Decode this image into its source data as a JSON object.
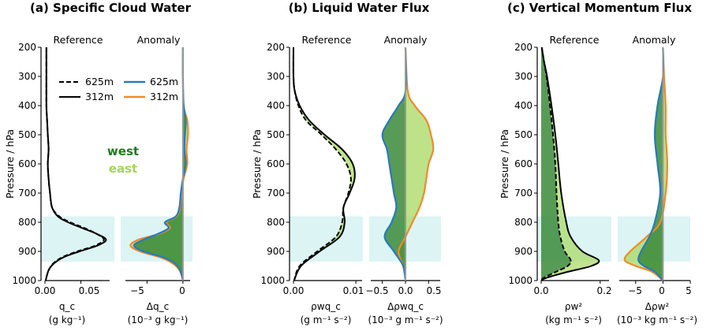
{
  "panels": [
    {
      "title": "(a) Specific Cloud Water",
      "ylabel": "Pressure / hPa",
      "sub_left": "Reference",
      "sub_right": "Anomaly",
      "xticks_left": [
        "0.00",
        "0.05"
      ],
      "xticks_right": [
        "−5",
        "0"
      ],
      "xlabel_left": [
        "q_c",
        "(g kg⁻¹)"
      ],
      "xlabel_right": [
        "Δq_c",
        "(10⁻³ g kg⁻¹)"
      ]
    },
    {
      "title": "(b) Liquid Water Flux",
      "ylabel": "Pressure / hPa",
      "sub_left": "Reference",
      "sub_right": "Anomaly",
      "xticks_left": [
        "0.00",
        "0.01"
      ],
      "xticks_right": [
        "−0.5",
        "0.0",
        "0.5"
      ],
      "xlabel_left": [
        "ρwq_c",
        "(g m⁻¹ s⁻²)"
      ],
      "xlabel_right": [
        "Δρwq_c",
        "(10⁻³ g m⁻¹ s⁻²)"
      ]
    },
    {
      "title": "(c) Vertical Momentum Flux",
      "ylabel": "Pressure / hPa",
      "sub_left": "Reference",
      "sub_right": "Anomaly",
      "xticks_left": [
        "0.0",
        "0.2"
      ],
      "xticks_right": [
        "−5",
        "0",
        "5"
      ],
      "xlabel_left": [
        "ρw²",
        "(kg m⁻¹ s⁻²)"
      ],
      "xlabel_right": [
        "Δρw²",
        "(10⁻³ kg m⁻¹ s⁻²)"
      ]
    }
  ],
  "yticks": [
    "200",
    "300",
    "400",
    "500",
    "600",
    "700",
    "800",
    "900",
    "1000"
  ],
  "legend_black": [
    "625m",
    "312m"
  ],
  "legend_color": [
    "625m",
    "312m"
  ],
  "region_labels": {
    "west": "west",
    "east": "east"
  },
  "colors": {
    "west": "#3a8a3a",
    "east": "#a8d860",
    "blue": "#2a7ab8",
    "orange": "#f08a2a",
    "shade": "#dcf4f4",
    "zero_line": "#999999",
    "west_text": "#1e7a1e",
    "east_text": "#a4d45a"
  },
  "chart_data": [
    {
      "type": "line",
      "title": "(a) Specific Cloud Water",
      "part": "Reference",
      "xlim": [
        0.0,
        0.09
      ],
      "ylim": [
        1000,
        200
      ],
      "y_scale": "linear",
      "shaded_band_hPa": [
        780,
        935
      ],
      "pressure_hPa": [
        200,
        300,
        400,
        450,
        500,
        550,
        600,
        650,
        700,
        750,
        780,
        800,
        820,
        840,
        860,
        880,
        900,
        920,
        940,
        960,
        980,
        1000
      ],
      "series": [
        {
          "name": "625m",
          "style": "dashed",
          "values": [
            0.002,
            0.002,
            0.002,
            0.003,
            0.004,
            0.005,
            0.004,
            0.005,
            0.007,
            0.01,
            0.02,
            0.035,
            0.055,
            0.072,
            0.082,
            0.07,
            0.045,
            0.024,
            0.012,
            0.006,
            0.003,
            0.001
          ]
        },
        {
          "name": "312m",
          "style": "solid",
          "values": [
            0.002,
            0.002,
            0.002,
            0.003,
            0.004,
            0.005,
            0.004,
            0.005,
            0.007,
            0.01,
            0.018,
            0.032,
            0.052,
            0.072,
            0.085,
            0.073,
            0.048,
            0.026,
            0.013,
            0.006,
            0.003,
            0.001
          ]
        }
      ]
    },
    {
      "type": "line",
      "title": "(a) Specific Cloud Water",
      "part": "Anomaly",
      "xlim": [
        -8,
        1
      ],
      "ylim": [
        1000,
        200
      ],
      "y_scale": "linear",
      "pressure_hPa": [
        200,
        300,
        400,
        450,
        500,
        550,
        600,
        650,
        700,
        750,
        780,
        800,
        820,
        840,
        860,
        880,
        900,
        920,
        940,
        960,
        980,
        1000
      ],
      "series": [
        {
          "name": "625m",
          "color": "blue",
          "values": [
            0.0,
            0.0,
            0.1,
            0.4,
            0.3,
            0.2,
            0.4,
            0.0,
            -0.3,
            -0.5,
            -1.0,
            -2.5,
            -2.0,
            -3.5,
            -5.5,
            -6.8,
            -5.5,
            -2.8,
            -1.2,
            -0.5,
            -0.2,
            0.0
          ]
        },
        {
          "name": "312m",
          "color": "orange",
          "values": [
            0.0,
            0.0,
            0.1,
            0.6,
            0.7,
            0.5,
            0.6,
            0.1,
            -0.2,
            -0.4,
            -0.9,
            -2.3,
            -1.8,
            -3.3,
            -6.2,
            -7.3,
            -6.0,
            -3.2,
            -1.5,
            -0.6,
            -0.2,
            0.0
          ]
        }
      ]
    },
    {
      "type": "line",
      "title": "(b) Liquid Water Flux",
      "part": "Reference",
      "xlim": [
        0.0,
        0.011
      ],
      "ylim": [
        1000,
        200
      ],
      "y_scale": "linear",
      "shaded_band_hPa": [
        780,
        935
      ],
      "pressure_hPa": [
        200,
        300,
        350,
        400,
        450,
        500,
        550,
        600,
        650,
        700,
        750,
        800,
        850,
        900,
        950,
        1000
      ],
      "series": [
        {
          "name": "625m",
          "style": "dashed",
          "values": [
            0.0,
            0.0,
            0.0002,
            0.0008,
            0.002,
            0.0045,
            0.0068,
            0.0085,
            0.0092,
            0.0088,
            0.008,
            0.0078,
            0.0068,
            0.0038,
            0.001,
            0.0001
          ]
        },
        {
          "name": "312m",
          "style": "solid",
          "values": [
            0.0,
            0.0,
            0.0002,
            0.001,
            0.0025,
            0.005,
            0.0078,
            0.0095,
            0.0098,
            0.009,
            0.008,
            0.0082,
            0.0074,
            0.0042,
            0.0012,
            0.0001
          ]
        }
      ]
    },
    {
      "type": "line",
      "title": "(b) Liquid Water Flux",
      "part": "Anomaly",
      "xlim": [
        -0.75,
        0.75
      ],
      "ylim": [
        1000,
        200
      ],
      "y_scale": "linear",
      "pressure_hPa": [
        200,
        350,
        400,
        450,
        500,
        550,
        600,
        650,
        700,
        750,
        800,
        850,
        900,
        950,
        1000
      ],
      "series": [
        {
          "name": "625m",
          "color": "blue",
          "values": [
            0.0,
            0.0,
            -0.15,
            -0.35,
            -0.5,
            -0.4,
            -0.35,
            -0.3,
            -0.25,
            -0.2,
            -0.3,
            -0.45,
            -0.25,
            -0.05,
            0.0
          ]
        },
        {
          "name": "312m",
          "color": "orange",
          "values": [
            0.0,
            0.05,
            0.2,
            0.45,
            0.55,
            0.6,
            0.5,
            0.45,
            0.4,
            0.3,
            0.15,
            0.0,
            -0.15,
            -0.05,
            0.0
          ]
        }
      ]
    },
    {
      "type": "line",
      "title": "(c) Vertical Momentum Flux",
      "part": "Reference",
      "xlim": [
        0.0,
        0.23
      ],
      "ylim": [
        1000,
        200
      ],
      "y_scale": "linear",
      "shaded_band_hPa": [
        780,
        935
      ],
      "pressure_hPa": [
        200,
        250,
        300,
        400,
        500,
        600,
        700,
        800,
        850,
        900,
        930,
        950,
        970,
        990,
        1000
      ],
      "series": [
        {
          "name": "625m",
          "style": "dashed",
          "values": [
            0.002,
            0.01,
            0.018,
            0.03,
            0.04,
            0.048,
            0.052,
            0.058,
            0.065,
            0.08,
            0.1,
            0.09,
            0.05,
            0.01,
            0.0
          ]
        },
        {
          "name": "312m",
          "style": "solid",
          "values": [
            0.002,
            0.01,
            0.02,
            0.035,
            0.048,
            0.058,
            0.068,
            0.085,
            0.1,
            0.14,
            0.195,
            0.17,
            0.09,
            0.02,
            0.0
          ]
        }
      ]
    },
    {
      "type": "line",
      "title": "(c) Vertical Momentum Flux",
      "part": "Anomaly",
      "xlim": [
        -8,
        5
      ],
      "ylim": [
        1000,
        200
      ],
      "y_scale": "linear",
      "pressure_hPa": [
        200,
        300,
        400,
        500,
        600,
        700,
        800,
        850,
        900,
        930,
        950,
        970,
        1000
      ],
      "series": [
        {
          "name": "625m",
          "color": "blue",
          "values": [
            0.0,
            0.0,
            -1.0,
            -1.5,
            -1.0,
            -0.5,
            -1.5,
            -2.5,
            -4.0,
            -4.5,
            -3.5,
            -1.5,
            0.0
          ]
        },
        {
          "name": "312m",
          "color": "orange",
          "values": [
            0.0,
            0.2,
            0.5,
            0.5,
            0.8,
            0.5,
            -0.5,
            -3.0,
            -6.0,
            -7.0,
            -5.0,
            -2.0,
            0.0
          ]
        }
      ]
    }
  ]
}
